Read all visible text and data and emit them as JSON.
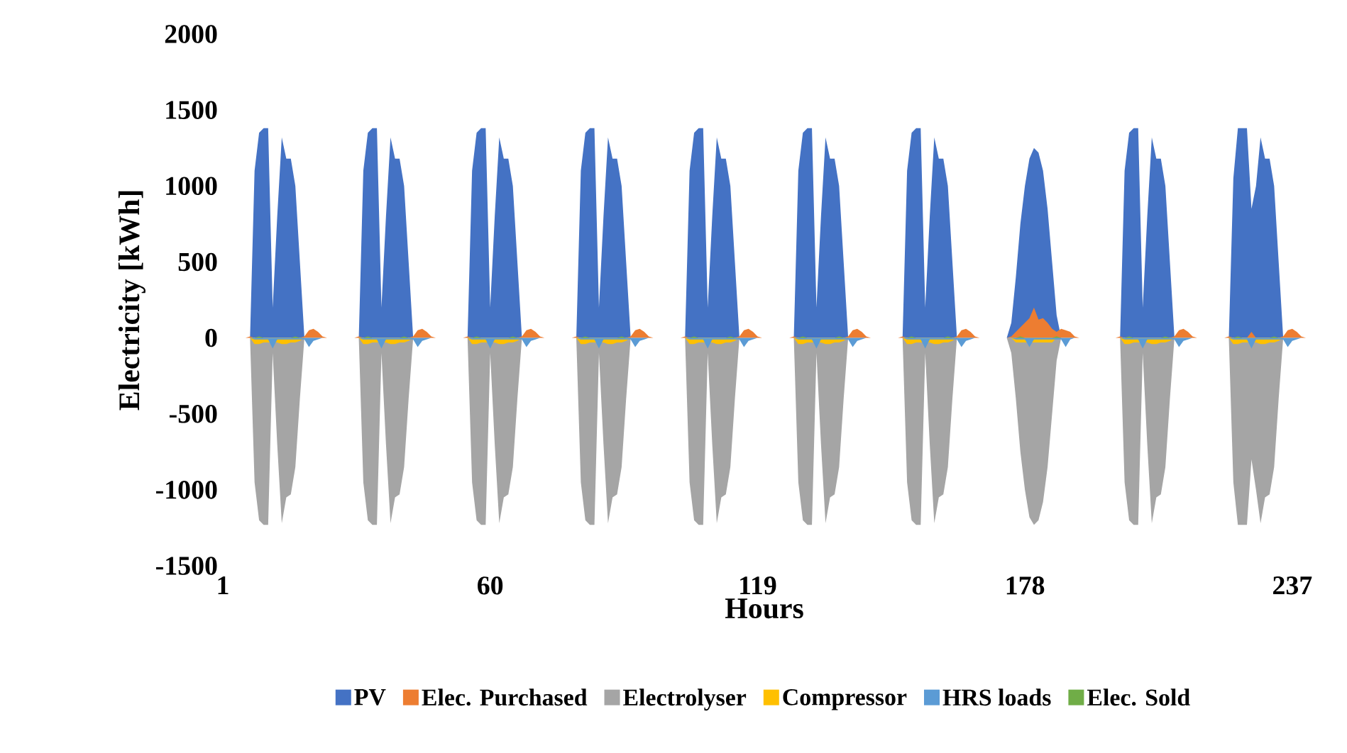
{
  "chart_data": {
    "type": "area",
    "xlabel": "Hours",
    "ylabel": "Electricity [kWh]",
    "categories": [
      "1",
      null,
      null,
      null,
      null,
      null,
      null,
      null,
      null,
      null,
      null,
      null,
      null,
      null,
      null,
      null,
      null,
      null,
      null,
      null,
      null,
      null,
      null,
      null,
      null,
      null,
      null,
      null,
      null,
      null,
      null,
      null,
      null,
      null,
      null,
      null,
      null,
      null,
      null,
      null,
      null,
      null,
      null,
      null,
      null,
      null,
      null,
      null,
      null,
      null,
      null,
      null,
      null,
      null,
      null,
      null,
      null,
      null,
      null,
      "60",
      null,
      null,
      null,
      null,
      null,
      null,
      null,
      null,
      null,
      null,
      null,
      null,
      null,
      null,
      null,
      null,
      null,
      null,
      null,
      null,
      null,
      null,
      null,
      null,
      null,
      null,
      null,
      null,
      null,
      null,
      null,
      null,
      null,
      null,
      null,
      null,
      null,
      null,
      null,
      null,
      null,
      null,
      null,
      null,
      null,
      null,
      null,
      null,
      null,
      null,
      null,
      null,
      null,
      null,
      null,
      null,
      null,
      null,
      "119",
      null,
      null,
      null,
      null,
      null,
      null,
      null,
      null,
      null,
      null,
      null,
      null,
      null,
      null,
      null,
      null,
      null,
      null,
      null,
      null,
      null,
      null,
      null,
      null,
      null,
      null,
      null,
      null,
      null,
      null,
      null,
      null,
      null,
      null,
      null,
      null,
      null,
      null,
      null,
      null,
      null,
      null,
      null,
      null,
      null,
      null,
      null,
      null,
      null,
      null,
      null,
      null,
      null,
      null,
      null,
      null,
      null,
      null,
      "178",
      null,
      null,
      null,
      null,
      null,
      null,
      null,
      null,
      null,
      null,
      null,
      null,
      null,
      null,
      null,
      null,
      null,
      null,
      null,
      null,
      null,
      null,
      null,
      null,
      null,
      null,
      null,
      null,
      null,
      null,
      null,
      null,
      null,
      null,
      null,
      null,
      null,
      null,
      null,
      null,
      null,
      null,
      null,
      null,
      null,
      null,
      null,
      null,
      null,
      null,
      null,
      null,
      null,
      null,
      null,
      null,
      null,
      null,
      "237",
      null,
      null,
      null
    ],
    "ylim": [
      -1500,
      2000
    ],
    "yticks": [
      -1500,
      -1000,
      -500,
      0,
      500,
      1000,
      1500,
      2000
    ],
    "legend": "bottom",
    "series": [
      {
        "name": "PV",
        "color": "#4472c4",
        "values": [
          0,
          0,
          0,
          0,
          0,
          0,
          0,
          1100,
          1350,
          1380,
          1380,
          200,
          800,
          1320,
          1180,
          1180,
          1000,
          500,
          0,
          0,
          0,
          0,
          0,
          0,
          0,
          0,
          0,
          0,
          0,
          0,
          0,
          1100,
          1350,
          1380,
          1380,
          200,
          800,
          1320,
          1180,
          1180,
          1000,
          500,
          0,
          0,
          0,
          0,
          0,
          0,
          0,
          0,
          0,
          0,
          0,
          0,
          0,
          1100,
          1350,
          1380,
          1380,
          200,
          800,
          1320,
          1180,
          1180,
          1000,
          500,
          0,
          0,
          0,
          0,
          0,
          0,
          0,
          0,
          0,
          0,
          0,
          0,
          0,
          1100,
          1350,
          1380,
          1380,
          200,
          800,
          1320,
          1180,
          1180,
          1000,
          500,
          0,
          0,
          0,
          0,
          0,
          0,
          0,
          0,
          0,
          0,
          0,
          0,
          0,
          1100,
          1350,
          1380,
          1380,
          200,
          800,
          1320,
          1180,
          1180,
          1000,
          500,
          0,
          0,
          0,
          0,
          0,
          0,
          0,
          0,
          0,
          0,
          0,
          0,
          0,
          1100,
          1350,
          1380,
          1380,
          200,
          800,
          1320,
          1180,
          1180,
          1000,
          500,
          0,
          0,
          0,
          0,
          0,
          0,
          0,
          0,
          0,
          0,
          0,
          0,
          0,
          1100,
          1350,
          1380,
          1380,
          200,
          800,
          1320,
          1180,
          1180,
          1000,
          500,
          0,
          0,
          0,
          0,
          0,
          0,
          0,
          0,
          0,
          0,
          0,
          0,
          100,
          400,
          750,
          1000,
          1180,
          1250,
          1220,
          1100,
          850,
          500,
          150,
          0,
          0,
          0,
          0,
          0,
          0,
          0,
          0,
          0,
          0,
          0,
          0,
          0,
          0,
          1100,
          1350,
          1380,
          1380,
          200,
          800,
          1320,
          1180,
          1180,
          1000,
          500,
          0,
          0,
          0,
          0,
          0,
          0,
          0,
          0,
          0,
          0,
          0,
          0,
          0,
          1050,
          1380,
          1380,
          1380,
          850,
          1000,
          1320,
          1180,
          1180,
          1000,
          500,
          0,
          0,
          0,
          0,
          0,
          0
        ]
      },
      {
        "name": "Elec. Purchased",
        "color": "#ed7d31",
        "values": [
          0,
          0,
          0,
          0,
          0,
          0,
          10,
          0,
          0,
          0,
          0,
          0,
          0,
          0,
          0,
          0,
          0,
          0,
          10,
          50,
          60,
          40,
          10,
          0,
          0,
          0,
          0,
          0,
          0,
          0,
          10,
          0,
          0,
          0,
          0,
          0,
          0,
          0,
          0,
          0,
          0,
          0,
          10,
          50,
          60,
          40,
          10,
          0,
          0,
          0,
          0,
          0,
          0,
          0,
          10,
          0,
          0,
          0,
          0,
          0,
          0,
          0,
          0,
          0,
          0,
          0,
          10,
          50,
          60,
          40,
          10,
          0,
          0,
          0,
          0,
          0,
          0,
          0,
          10,
          0,
          0,
          0,
          0,
          0,
          0,
          0,
          0,
          0,
          0,
          0,
          10,
          50,
          60,
          40,
          10,
          0,
          0,
          0,
          0,
          0,
          0,
          0,
          10,
          0,
          0,
          0,
          0,
          0,
          0,
          0,
          0,
          0,
          0,
          0,
          10,
          50,
          60,
          40,
          10,
          0,
          0,
          0,
          0,
          0,
          0,
          0,
          10,
          0,
          0,
          0,
          0,
          0,
          0,
          0,
          0,
          0,
          0,
          0,
          10,
          50,
          60,
          40,
          10,
          0,
          0,
          0,
          0,
          0,
          0,
          0,
          10,
          0,
          0,
          0,
          0,
          0,
          0,
          0,
          0,
          0,
          0,
          0,
          10,
          50,
          60,
          40,
          10,
          0,
          0,
          0,
          0,
          0,
          0,
          0,
          10,
          40,
          70,
          100,
          130,
          200,
          120,
          130,
          100,
          60,
          40,
          60,
          50,
          40,
          10,
          0,
          0,
          0,
          0,
          0,
          0,
          0,
          0,
          0,
          10,
          0,
          0,
          0,
          0,
          0,
          0,
          0,
          0,
          0,
          0,
          0,
          10,
          50,
          60,
          40,
          10,
          0,
          0,
          0,
          0,
          0,
          0,
          0,
          10,
          0,
          0,
          0,
          0,
          40,
          0,
          0,
          0,
          0,
          0,
          0,
          10,
          50,
          60,
          40,
          10,
          0
        ]
      },
      {
        "name": "Electrolyser",
        "color": "#a5a5a5",
        "values": [
          0,
          0,
          0,
          0,
          0,
          0,
          0,
          -950,
          -1200,
          -1230,
          -1230,
          -100,
          -700,
          -1220,
          -1050,
          -1030,
          -850,
          -400,
          0,
          0,
          0,
          0,
          0,
          0,
          0,
          0,
          0,
          0,
          0,
          0,
          0,
          -950,
          -1200,
          -1230,
          -1230,
          -100,
          -700,
          -1220,
          -1050,
          -1030,
          -850,
          -400,
          0,
          0,
          0,
          0,
          0,
          0,
          0,
          0,
          0,
          0,
          0,
          0,
          0,
          -950,
          -1200,
          -1230,
          -1230,
          -100,
          -700,
          -1220,
          -1050,
          -1030,
          -850,
          -400,
          0,
          0,
          0,
          0,
          0,
          0,
          0,
          0,
          0,
          0,
          0,
          0,
          0,
          -950,
          -1200,
          -1230,
          -1230,
          -100,
          -700,
          -1220,
          -1050,
          -1030,
          -850,
          -400,
          0,
          0,
          0,
          0,
          0,
          0,
          0,
          0,
          0,
          0,
          0,
          0,
          0,
          -950,
          -1200,
          -1230,
          -1230,
          -100,
          -700,
          -1220,
          -1050,
          -1030,
          -850,
          -400,
          0,
          0,
          0,
          0,
          0,
          0,
          0,
          0,
          0,
          0,
          0,
          0,
          0,
          -950,
          -1200,
          -1230,
          -1230,
          -100,
          -700,
          -1220,
          -1050,
          -1030,
          -850,
          -400,
          0,
          0,
          0,
          0,
          0,
          0,
          0,
          0,
          0,
          0,
          0,
          0,
          0,
          -950,
          -1200,
          -1230,
          -1230,
          -100,
          -700,
          -1220,
          -1050,
          -1030,
          -850,
          -400,
          0,
          0,
          0,
          0,
          0,
          0,
          0,
          0,
          0,
          0,
          0,
          0,
          -100,
          -400,
          -750,
          -1000,
          -1180,
          -1230,
          -1200,
          -1080,
          -850,
          -500,
          -150,
          0,
          0,
          0,
          0,
          0,
          0,
          0,
          0,
          0,
          0,
          0,
          0,
          0,
          0,
          -950,
          -1200,
          -1230,
          -1230,
          -100,
          -700,
          -1220,
          -1050,
          -1030,
          -850,
          -400,
          0,
          0,
          0,
          0,
          0,
          0,
          0,
          0,
          0,
          0,
          0,
          0,
          0,
          -950,
          -1230,
          -1230,
          -1230,
          -800,
          -1000,
          -1220,
          -1050,
          -1030,
          -850,
          -400,
          0,
          0,
          0,
          0,
          0,
          0
        ]
      },
      {
        "name": "Compressor",
        "color": "#ffc000",
        "values": [
          0,
          0,
          0,
          0,
          0,
          0,
          0,
          -40,
          -40,
          -30,
          -30,
          null,
          -30,
          -40,
          -40,
          -30,
          -30,
          -20,
          0,
          0,
          0,
          0,
          0,
          0,
          0,
          0,
          0,
          0,
          0,
          0,
          0,
          -40,
          -40,
          -30,
          -30,
          null,
          -30,
          -40,
          -40,
          -30,
          -30,
          -20,
          0,
          0,
          0,
          0,
          0,
          0,
          0,
          0,
          0,
          0,
          0,
          0,
          0,
          -40,
          -40,
          -30,
          -30,
          null,
          -30,
          -40,
          -40,
          -30,
          -30,
          -20,
          0,
          0,
          0,
          0,
          0,
          0,
          0,
          0,
          0,
          0,
          0,
          0,
          0,
          -40,
          -40,
          -30,
          -30,
          null,
          -30,
          -40,
          -40,
          -30,
          -30,
          -20,
          0,
          0,
          0,
          0,
          0,
          0,
          0,
          0,
          0,
          0,
          0,
          0,
          0,
          -40,
          -40,
          -30,
          -30,
          null,
          -30,
          -40,
          -40,
          -30,
          -30,
          -20,
          0,
          0,
          0,
          0,
          0,
          0,
          0,
          0,
          0,
          0,
          0,
          0,
          0,
          -40,
          -40,
          -30,
          -30,
          null,
          -30,
          -40,
          -40,
          -30,
          -30,
          -20,
          0,
          0,
          0,
          0,
          0,
          0,
          0,
          0,
          0,
          0,
          0,
          0,
          0,
          -40,
          -40,
          -30,
          -30,
          null,
          -30,
          -40,
          -40,
          -30,
          -30,
          -20,
          0,
          0,
          0,
          0,
          0,
          0,
          0,
          0,
          0,
          0,
          0,
          0,
          0,
          -30,
          -30,
          -30,
          -30,
          -30,
          -30,
          -30,
          -30,
          -30,
          0,
          0,
          0,
          0,
          0,
          0,
          0,
          0,
          0,
          0,
          0,
          0,
          0,
          0,
          0,
          -40,
          -40,
          -30,
          -30,
          null,
          -30,
          -40,
          -40,
          -30,
          -30,
          -20,
          0,
          0,
          0,
          0,
          0,
          0,
          0,
          0,
          0,
          0,
          0,
          0,
          0,
          -40,
          -40,
          -30,
          -30,
          null,
          -30,
          -40,
          -40,
          -30,
          -30,
          -20,
          0,
          0,
          0,
          0,
          0,
          0
        ]
      },
      {
        "name": "HRS loads",
        "color": "#5b9bd5",
        "values": [
          0,
          0,
          0,
          0,
          0,
          0,
          0,
          -10,
          -10,
          -10,
          -10,
          -70,
          -10,
          -10,
          -10,
          -10,
          -10,
          -10,
          -10,
          -60,
          -20,
          -10,
          0,
          0,
          0,
          0,
          0,
          0,
          0,
          0,
          0,
          -10,
          -10,
          -10,
          -10,
          -70,
          -10,
          -10,
          -10,
          -10,
          -10,
          -10,
          -10,
          -60,
          -20,
          -10,
          0,
          0,
          0,
          0,
          0,
          0,
          0,
          0,
          0,
          -10,
          -10,
          -10,
          -10,
          -70,
          -10,
          -10,
          -10,
          -10,
          -10,
          -10,
          -10,
          -60,
          -20,
          -10,
          0,
          0,
          0,
          0,
          0,
          0,
          0,
          0,
          0,
          -10,
          -10,
          -10,
          -10,
          -70,
          -10,
          -10,
          -10,
          -10,
          -10,
          -10,
          -10,
          -60,
          -20,
          -10,
          0,
          0,
          0,
          0,
          0,
          0,
          0,
          0,
          0,
          -10,
          -10,
          -10,
          -10,
          -70,
          -10,
          -10,
          -10,
          -10,
          -10,
          -10,
          -10,
          -60,
          -20,
          -10,
          0,
          0,
          0,
          0,
          0,
          0,
          0,
          0,
          0,
          -10,
          -10,
          -10,
          -10,
          -70,
          -10,
          -10,
          -10,
          -10,
          -10,
          -10,
          -10,
          -60,
          -20,
          -10,
          0,
          0,
          0,
          0,
          0,
          0,
          0,
          0,
          0,
          -10,
          -10,
          -10,
          -10,
          -70,
          -10,
          -10,
          -10,
          -10,
          -10,
          -10,
          -10,
          -60,
          -20,
          -10,
          0,
          0,
          0,
          0,
          0,
          0,
          0,
          0,
          0,
          -10,
          -10,
          -10,
          -60,
          -10,
          -10,
          -10,
          -10,
          -10,
          -10,
          -10,
          -60,
          -10,
          0,
          0,
          0,
          0,
          0,
          0,
          0,
          0,
          0,
          0,
          0,
          -10,
          -10,
          -10,
          -10,
          -70,
          -10,
          -10,
          -10,
          -10,
          -10,
          -10,
          -10,
          -60,
          -20,
          -10,
          0,
          0,
          0,
          0,
          0,
          0,
          0,
          0,
          0,
          -10,
          -10,
          -10,
          -10,
          -70,
          -10,
          -10,
          -10,
          -10,
          -10,
          -10,
          -10,
          -60,
          -20,
          -10,
          0,
          0
        ]
      },
      {
        "name": "Elec. Sold",
        "color": "#70ad47",
        "values": [
          0,
          0,
          0,
          0,
          0,
          0,
          0,
          0,
          10,
          0,
          0,
          0,
          0,
          0,
          0,
          0,
          10,
          0,
          0,
          0,
          0,
          0,
          0,
          0,
          0,
          0,
          0,
          0,
          0,
          0,
          0,
          0,
          10,
          0,
          0,
          0,
          0,
          0,
          0,
          0,
          10,
          0,
          0,
          0,
          0,
          0,
          0,
          0,
          0,
          0,
          0,
          0,
          0,
          0,
          0,
          0,
          10,
          0,
          0,
          0,
          0,
          0,
          0,
          0,
          10,
          0,
          0,
          0,
          0,
          0,
          0,
          0,
          0,
          0,
          0,
          0,
          0,
          0,
          0,
          0,
          10,
          0,
          0,
          0,
          0,
          0,
          0,
          0,
          10,
          0,
          0,
          0,
          0,
          0,
          0,
          0,
          0,
          0,
          0,
          0,
          0,
          0,
          0,
          0,
          10,
          0,
          0,
          0,
          0,
          0,
          0,
          0,
          10,
          0,
          0,
          0,
          0,
          0,
          0,
          0,
          0,
          0,
          0,
          0,
          0,
          0,
          0,
          0,
          10,
          0,
          0,
          0,
          0,
          0,
          0,
          0,
          10,
          0,
          0,
          0,
          0,
          0,
          0,
          0,
          0,
          0,
          0,
          0,
          0,
          0,
          0,
          0,
          10,
          0,
          0,
          0,
          0,
          0,
          0,
          0,
          10,
          0,
          0,
          0,
          0,
          0,
          0,
          0,
          0,
          0,
          0,
          0,
          0,
          0,
          0,
          0,
          10,
          0,
          0,
          0,
          0,
          0,
          0,
          0,
          10,
          0,
          0,
          0,
          0,
          0,
          0,
          0,
          0,
          0,
          0,
          0,
          0,
          0,
          0,
          0,
          10,
          0,
          0,
          0,
          0,
          0,
          0,
          0,
          10,
          0,
          0,
          0,
          0,
          0,
          0,
          0,
          0,
          0,
          0,
          0,
          0,
          0,
          0,
          0,
          10,
          0,
          0,
          0,
          0,
          0,
          0,
          0,
          10,
          0,
          0,
          0,
          0,
          0,
          0,
          0
        ]
      }
    ]
  }
}
